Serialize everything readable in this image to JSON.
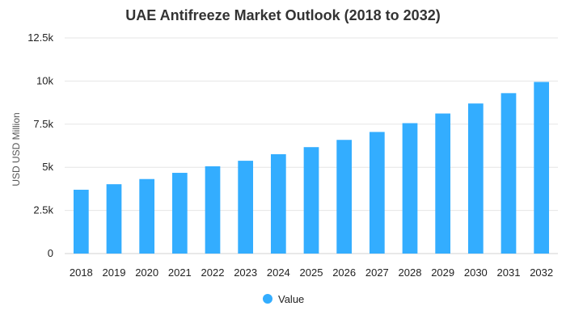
{
  "chart_data": {
    "type": "bar",
    "title": "UAE Antifreeze Market Outlook (2018 to 2032)",
    "ylabel": "USD USD Million",
    "xlabel": "",
    "categories": [
      "2018",
      "2019",
      "2020",
      "2021",
      "2022",
      "2023",
      "2024",
      "2025",
      "2026",
      "2027",
      "2028",
      "2029",
      "2030",
      "2031",
      "2032"
    ],
    "series": [
      {
        "name": "Value",
        "color": "#33adff",
        "values": [
          3700,
          4020,
          4320,
          4680,
          5060,
          5380,
          5760,
          6170,
          6590,
          7050,
          7560,
          8120,
          8700,
          9300,
          9950
        ]
      }
    ],
    "ylim": [
      0,
      12500
    ],
    "yticks": [
      0,
      2500,
      5000,
      7500,
      10000,
      12500
    ],
    "ytick_labels": [
      "0",
      "2.5k",
      "5k",
      "7.5k",
      "10k",
      "12.5k"
    ],
    "grid": true,
    "legend": "bottom-center"
  }
}
